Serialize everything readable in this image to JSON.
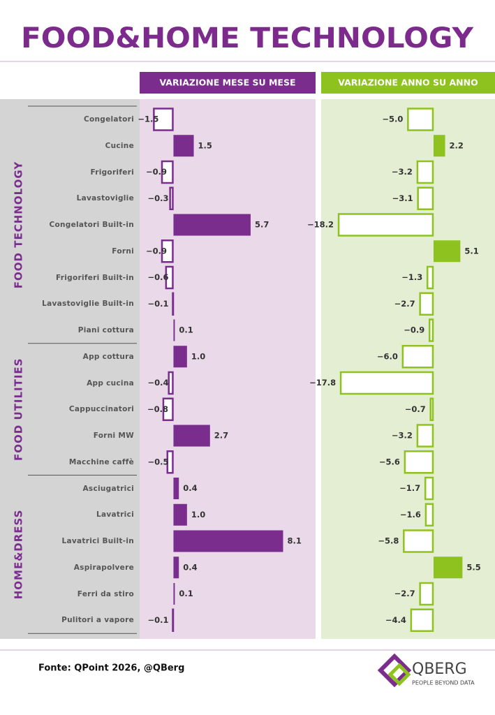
{
  "chart_data": {
    "type": "bar",
    "orientation": "horizontal",
    "title": "FOOD&HOME TECHNOLOGY",
    "groups": [
      {
        "name": "FOOD TECHNOLOGY",
        "categories": [
          "Congelatori",
          "Cucine",
          "Frigoriferi",
          "Lavastoviglie",
          "Congelatori Built-in",
          "Forni",
          "Frigoriferi Built-in",
          "Lavastoviglie Built-in",
          "Piani cottura"
        ]
      },
      {
        "name": "FOOD UTILITIES",
        "categories": [
          "App cottura",
          "App cucina",
          "Cappuccinatori",
          "Forni MW",
          "Macchine caffè"
        ]
      },
      {
        "name": "HOME&DRESS",
        "categories": [
          "Asciugatrici",
          "Lavatrici",
          "Lavatrici Built-in",
          "Aspirapolvere",
          "Ferri da stiro",
          "Pulitori a vapore"
        ]
      }
    ],
    "series": [
      {
        "name": "VARIAZIONE MESE SU MESE",
        "color": "#7b2d8e",
        "background": "#ead9e8",
        "xlim": [
          -2.5,
          10.5
        ],
        "values": [
          -1.5,
          1.5,
          -0.9,
          -0.3,
          5.7,
          -0.9,
          -0.6,
          -0.1,
          0.1,
          1.0,
          -0.4,
          -0.8,
          2.7,
          -0.5,
          0.4,
          1.0,
          8.1,
          0.4,
          0.1,
          -0.1
        ],
        "value_labels": [
          "−1.5",
          "1.5",
          "−0.9",
          "−0.3",
          "5.7",
          "−0.9",
          "−0.6",
          "−0.1",
          "0.1",
          "1.0",
          "−0.4",
          "−0.8",
          "2.7",
          "−0.5",
          "0.4",
          "1.0",
          "8.1",
          "0.4",
          "0.1",
          "−0.1"
        ]
      },
      {
        "name": "VARIAZIONE ANNO SU ANNO",
        "color": "#8dc21f",
        "background": "#e3eed2",
        "xlim": [
          -21.4,
          11.7
        ],
        "values": [
          -5.0,
          2.2,
          -3.2,
          -3.1,
          -18.2,
          5.1,
          -1.3,
          -2.7,
          -0.9,
          -6.0,
          -17.8,
          -0.7,
          -3.2,
          -5.6,
          -1.7,
          -1.6,
          -5.8,
          5.5,
          -2.7,
          -4.4
        ],
        "value_labels": [
          "−5.0",
          "2.2",
          "−3.2",
          "−3.1",
          "−18.2",
          "5.1",
          "−1.3",
          "−2.7",
          "−0.9",
          "−6.0",
          "−17.8",
          "−0.7",
          "−3.2",
          "−5.6",
          "−1.7",
          "−1.6",
          "−5.8",
          "5.5",
          "−2.7",
          "−4.4"
        ]
      }
    ]
  },
  "footer": {
    "source": "Fonte: QPoint 2026, @QBerg",
    "logo_name": "QBERG",
    "logo_tagline": "PEOPLE BEYOND DATA"
  }
}
